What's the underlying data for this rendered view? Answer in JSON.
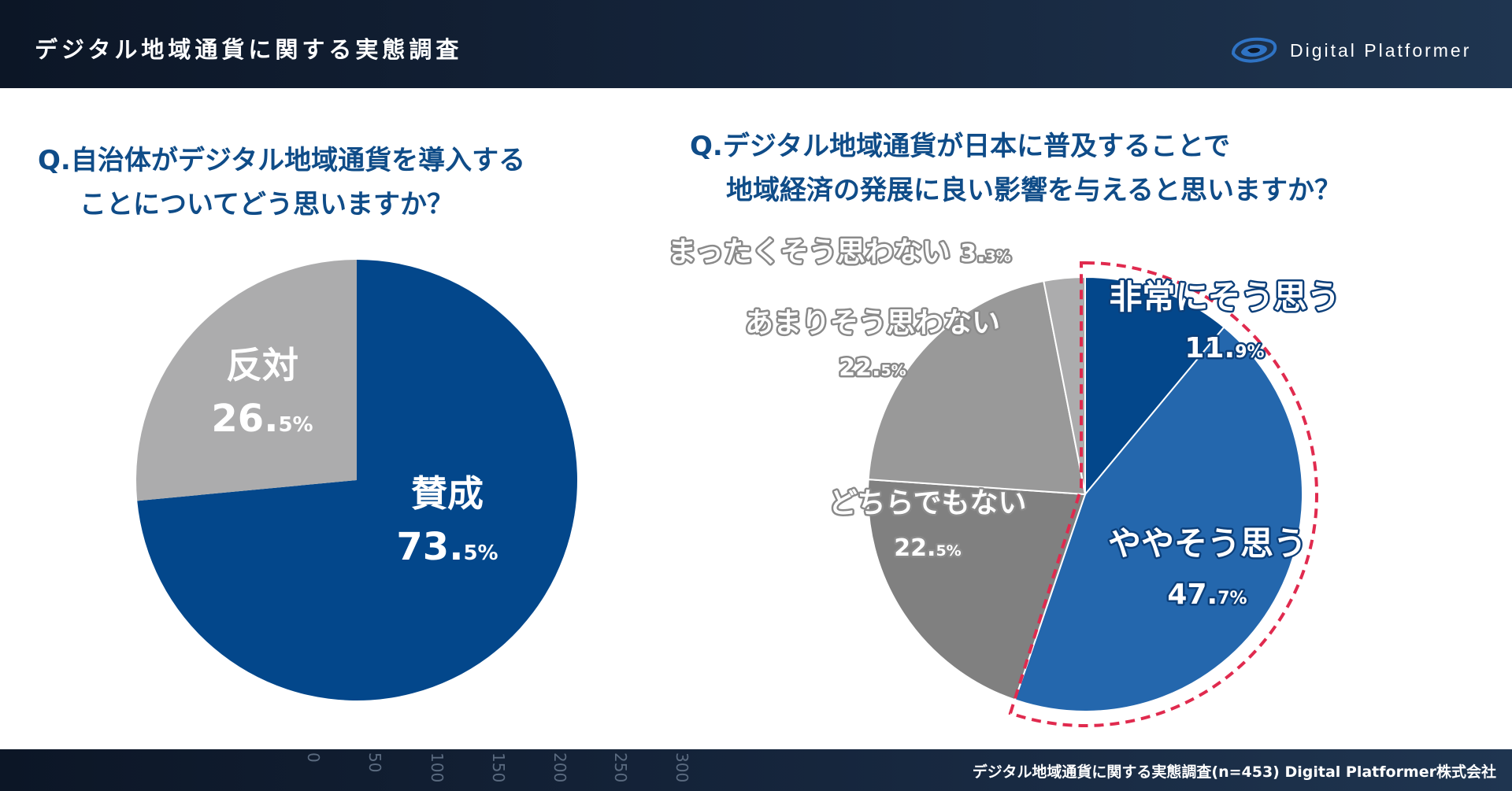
{
  "header": {
    "title": "デジタル地域通貨に関する実態調査",
    "brand": "Digital Platformer",
    "brand_icon": "digital-platformer-logo-icon"
  },
  "questions": {
    "q1": {
      "line1": "Q.自治体がデジタル地域通貨を導入する",
      "line2": "ことについてどう思いますか？"
    },
    "q2": {
      "line1": "Q.デジタル地域通貨が日本に普及することで",
      "line2": "地域経済の発展に良い影響を与えると思いますか？"
    }
  },
  "colors": {
    "navy": "#03478b",
    "blue": "#2467ad",
    "gray_light": "#acacad",
    "gray_mid": "#999999",
    "gray_dark": "#808080",
    "question_text": "#0f4c88",
    "highlight_dash": "#e02a4e"
  },
  "chart_data": [
    {
      "type": "pie",
      "start_angle_deg": 0,
      "direction": "clockwise",
      "slices": [
        {
          "label": "賛成",
          "value": 73.5,
          "main": "73.",
          "decimal": "5%",
          "color": "#03478b",
          "label_color": "#ffffff"
        },
        {
          "label": "反対",
          "value": 26.5,
          "main": "26.",
          "decimal": "5%",
          "color": "#acacad",
          "label_color": "#ffffff"
        }
      ]
    },
    {
      "type": "pie",
      "start_angle_deg": 0,
      "direction": "clockwise",
      "highlight": "dashed outline around 非常にそう思う and ややそう思う",
      "slices": [
        {
          "label": "非常にそう思う",
          "value": 11.9,
          "main": "11.",
          "decimal": "9%",
          "color": "#03478b",
          "label_color": "#ffffff"
        },
        {
          "label": "ややそう思う",
          "value": 47.7,
          "main": "47.",
          "decimal": "7%",
          "color": "#2467ad",
          "label_color": "#ffffff"
        },
        {
          "label": "どちらでもない",
          "value": 22.5,
          "main": "22.",
          "decimal": "5%",
          "color": "#808080",
          "label_color": "#ffffff"
        },
        {
          "label": "あまりそう思わない",
          "value": 22.5,
          "main": "22.",
          "decimal": "5%",
          "color": "#999999",
          "label_color": "#ffffff"
        },
        {
          "label": "まったくそう思わない",
          "value": 3.3,
          "main": "3.",
          "decimal": "3%",
          "color": "#acacad",
          "label_color": "#ffffff"
        }
      ]
    }
  ],
  "footer": {
    "source": "デジタル地域通貨に関する実態調査(n=453) Digital Platformer株式会社",
    "axis_ticks": [
      "0",
      "50",
      "100",
      "150",
      "200",
      "250",
      "300"
    ]
  }
}
